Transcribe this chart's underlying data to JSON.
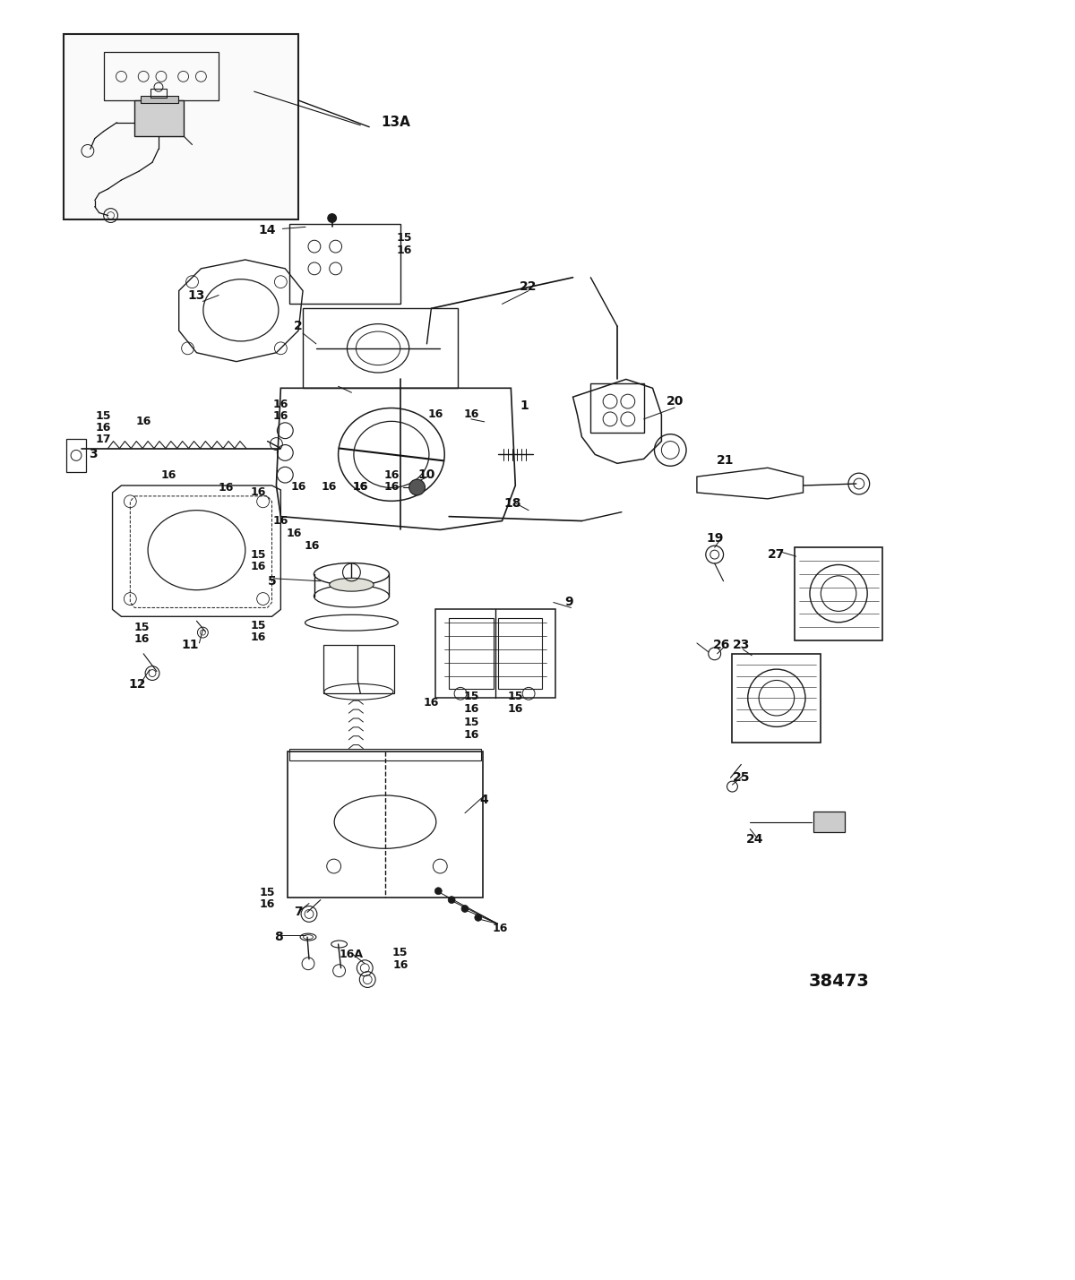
{
  "bg_color": "#f5f5f0",
  "line_color": "#1a1a1a",
  "text_color": "#111111",
  "fig_width": 12.0,
  "fig_height": 14.29,
  "dpi": 100
}
